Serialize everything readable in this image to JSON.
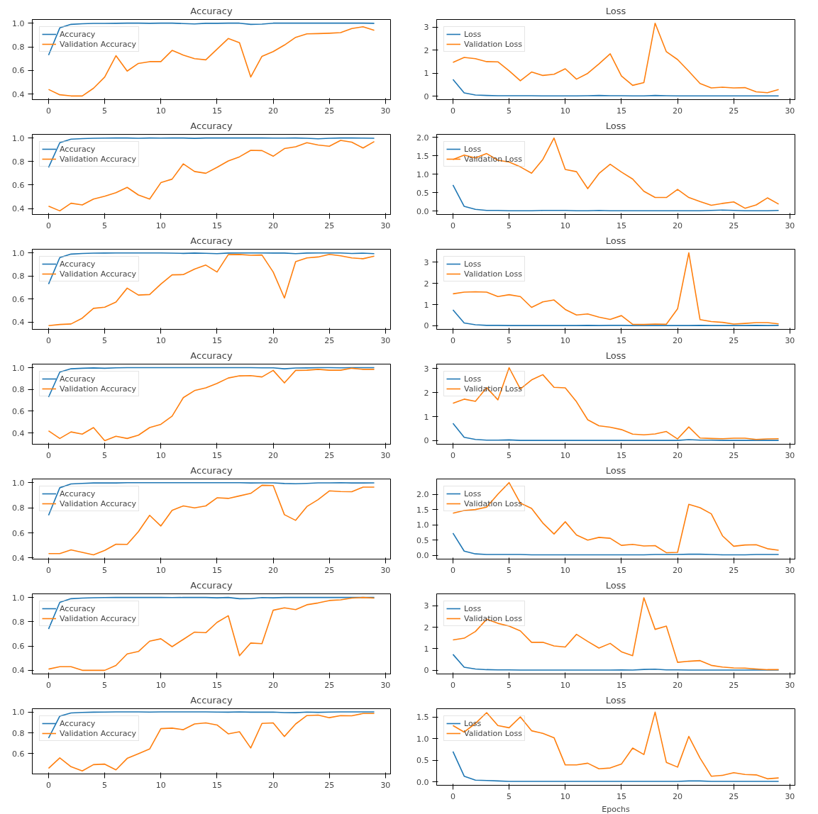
{
  "chart_data": [
    {
      "type": "line",
      "title": "Accuracy",
      "legend": "top left",
      "xlim": [
        -1.45,
        30.45
      ],
      "xticks": [
        0,
        5,
        10,
        15,
        20,
        25,
        30
      ],
      "ylim": [
        0.354,
        1.031
      ],
      "yticks": [
        0.4,
        0.6,
        0.8,
        {
          "value": 1,
          "label": "1.0"
        }
      ],
      "x": [
        0,
        1,
        2,
        3,
        4,
        5,
        6,
        7,
        8,
        9,
        10,
        11,
        12,
        13,
        14,
        15,
        16,
        17,
        18,
        19,
        20,
        21,
        22,
        23,
        24,
        25,
        26,
        27,
        28,
        29
      ],
      "series": [
        {
          "name": "Accuracy",
          "color": "#1f77b4",
          "values": [
            0.73,
            0.96,
            0.99,
            0.995,
            0.998,
            0.998,
            0.999,
            1.0,
            1.0,
            0.999,
            1.0,
            1.0,
            0.997,
            0.994,
            0.999,
            0.999,
            1.0,
            1.0,
            0.99,
            0.992,
            1.0,
            1.0,
            1.0,
            1.0,
            1.0,
            1.0,
            1.0,
            1.0,
            1.0,
            0.999
          ]
        },
        {
          "name": "Validation Accuracy",
          "color": "#ff7f0e",
          "values": [
            0.44,
            0.395,
            0.385,
            0.385,
            0.45,
            0.545,
            0.725,
            0.595,
            0.66,
            0.675,
            0.675,
            0.77,
            0.73,
            0.7,
            0.69,
            0.78,
            0.87,
            0.835,
            0.545,
            0.72,
            0.76,
            0.815,
            0.88,
            0.91,
            0.912,
            0.915,
            0.92,
            0.955,
            0.97,
            0.94
          ]
        }
      ]
    },
    {
      "type": "line",
      "title": "Loss",
      "legend": "top left",
      "xlim": [
        -1.45,
        30.45
      ],
      "xticks": [
        0,
        5,
        10,
        15,
        20,
        25,
        30
      ],
      "ylim": [
        -0.15,
        3.33
      ],
      "yticks": [
        0,
        1,
        2,
        3
      ],
      "x": [
        0,
        1,
        2,
        3,
        4,
        5,
        6,
        7,
        8,
        9,
        10,
        11,
        12,
        13,
        14,
        15,
        16,
        17,
        18,
        19,
        20,
        21,
        22,
        23,
        24,
        25,
        26,
        27,
        28,
        29
      ],
      "series": [
        {
          "name": "Loss",
          "color": "#1f77b4",
          "values": [
            0.73,
            0.14,
            0.05,
            0.03,
            0.02,
            0.02,
            0.02,
            0.02,
            0.01,
            0.01,
            0.01,
            0.01,
            0.02,
            0.03,
            0.02,
            0.02,
            0.01,
            0.01,
            0.03,
            0.02,
            0.01,
            0.01,
            0.01,
            0.01,
            0.01,
            0.01,
            0.01,
            0.01,
            0.01,
            0.01
          ]
        },
        {
          "name": "Validation Loss",
          "color": "#ff7f0e",
          "values": [
            1.47,
            1.68,
            1.63,
            1.5,
            1.49,
            1.1,
            0.67,
            1.05,
            0.9,
            0.95,
            1.19,
            0.74,
            0.99,
            1.4,
            1.84,
            0.88,
            0.47,
            0.59,
            3.17,
            1.93,
            1.59,
            1.08,
            0.55,
            0.36,
            0.39,
            0.36,
            0.37,
            0.19,
            0.15,
            0.29
          ]
        }
      ]
    },
    {
      "type": "line",
      "title": "Accuracy",
      "legend": "top left",
      "xlim": [
        -1.45,
        30.45
      ],
      "xticks": [
        0,
        5,
        10,
        15,
        20,
        25,
        30
      ],
      "ylim": [
        0.349,
        1.031
      ],
      "yticks": [
        0.4,
        0.6,
        0.8,
        {
          "value": 1,
          "label": "1.0"
        }
      ],
      "x": [
        0,
        1,
        2,
        3,
        4,
        5,
        6,
        7,
        8,
        9,
        10,
        11,
        12,
        13,
        14,
        15,
        16,
        17,
        18,
        19,
        20,
        21,
        22,
        23,
        24,
        25,
        26,
        27,
        28,
        29
      ],
      "series": [
        {
          "name": "Accuracy",
          "color": "#1f77b4",
          "values": [
            0.75,
            0.96,
            0.99,
            0.995,
            0.998,
            0.999,
            1.0,
            1.0,
            0.998,
            1.0,
            0.999,
            1.0,
            1.0,
            0.997,
            1.0,
            1.0,
            1.0,
            1.0,
            1.0,
            1.0,
            0.999,
            0.999,
            1.0,
            0.998,
            0.993,
            0.998,
            1.0,
            1.0,
            0.999,
            0.998
          ]
        },
        {
          "name": "Validation Accuracy",
          "color": "#ff7f0e",
          "values": [
            0.42,
            0.38,
            0.445,
            0.43,
            0.48,
            0.505,
            0.535,
            0.58,
            0.515,
            0.48,
            0.62,
            0.65,
            0.78,
            0.715,
            0.7,
            0.75,
            0.805,
            0.84,
            0.895,
            0.893,
            0.845,
            0.91,
            0.925,
            0.96,
            0.94,
            0.93,
            0.98,
            0.965,
            0.915,
            0.97
          ]
        }
      ]
    },
    {
      "type": "line",
      "title": "Loss",
      "legend": "top left",
      "xlim": [
        -1.45,
        30.45
      ],
      "xticks": [
        0,
        5,
        10,
        15,
        20,
        25,
        30
      ],
      "ylim": [
        -0.09,
        2.08
      ],
      "yticks": [
        {
          "value": 0,
          "label": "0.0"
        },
        0.5,
        {
          "value": 1,
          "label": "1.0"
        },
        1.5,
        {
          "value": 2,
          "label": "2.0"
        }
      ],
      "x": [
        0,
        1,
        2,
        3,
        4,
        5,
        6,
        7,
        8,
        9,
        10,
        11,
        12,
        13,
        14,
        15,
        16,
        17,
        18,
        19,
        20,
        21,
        22,
        23,
        24,
        25,
        26,
        27,
        28,
        29
      ],
      "series": [
        {
          "name": "Loss",
          "color": "#1f77b4",
          "values": [
            0.71,
            0.13,
            0.05,
            0.02,
            0.02,
            0.01,
            0.01,
            0.01,
            0.02,
            0.02,
            0.02,
            0.01,
            0.01,
            0.02,
            0.01,
            0.01,
            0.01,
            0.01,
            0.01,
            0.01,
            0.01,
            0.01,
            0.01,
            0.02,
            0.03,
            0.02,
            0.01,
            0.01,
            0.01,
            0.02
          ]
        },
        {
          "name": "Validation Loss",
          "color": "#ff7f0e",
          "values": [
            1.4,
            1.52,
            1.44,
            1.56,
            1.38,
            1.33,
            1.2,
            1.03,
            1.4,
            1.98,
            1.13,
            1.07,
            0.61,
            1.02,
            1.27,
            1.06,
            0.87,
            0.54,
            0.37,
            0.37,
            0.59,
            0.37,
            0.26,
            0.16,
            0.21,
            0.25,
            0.08,
            0.17,
            0.36,
            0.19
          ]
        }
      ]
    },
    {
      "type": "line",
      "title": "Accuracy",
      "legend": "top left",
      "xlim": [
        -1.45,
        30.45
      ],
      "xticks": [
        0,
        5,
        10,
        15,
        20,
        25,
        30
      ],
      "ylim": [
        0.338,
        1.032
      ],
      "yticks": [
        0.4,
        0.6,
        0.8,
        {
          "value": 1,
          "label": "1.0"
        }
      ],
      "x": [
        0,
        1,
        2,
        3,
        4,
        5,
        6,
        7,
        8,
        9,
        10,
        11,
        12,
        13,
        14,
        15,
        16,
        17,
        18,
        19,
        20,
        21,
        22,
        23,
        24,
        25,
        26,
        27,
        28,
        29
      ],
      "series": [
        {
          "name": "Accuracy",
          "color": "#1f77b4",
          "values": [
            0.73,
            0.96,
            0.99,
            0.995,
            0.998,
            0.999,
            1.0,
            1.0,
            1.0,
            1.0,
            1.0,
            0.998,
            0.996,
            0.999,
            0.997,
            0.994,
            0.999,
            1.0,
            1.0,
            1.0,
            0.999,
            0.999,
            0.994,
            0.999,
            1.0,
            1.0,
            1.0,
            0.995,
            0.998,
            0.994
          ]
        },
        {
          "name": "Validation Accuracy",
          "color": "#ff7f0e",
          "values": [
            0.37,
            0.38,
            0.385,
            0.435,
            0.52,
            0.53,
            0.575,
            0.695,
            0.635,
            0.64,
            0.73,
            0.81,
            0.812,
            0.86,
            0.895,
            0.835,
            0.985,
            0.987,
            0.98,
            0.982,
            0.835,
            0.61,
            0.925,
            0.957,
            0.965,
            0.987,
            0.975,
            0.957,
            0.95,
            0.972
          ]
        }
      ]
    },
    {
      "type": "line",
      "title": "Loss",
      "legend": "top left",
      "xlim": [
        -1.45,
        30.45
      ],
      "xticks": [
        0,
        5,
        10,
        15,
        20,
        25,
        30
      ],
      "ylim": [
        -0.17,
        3.62
      ],
      "yticks": [
        0,
        1,
        2,
        3
      ],
      "x": [
        0,
        1,
        2,
        3,
        4,
        5,
        6,
        7,
        8,
        9,
        10,
        11,
        12,
        13,
        14,
        15,
        16,
        17,
        18,
        19,
        20,
        21,
        22,
        23,
        24,
        25,
        26,
        27,
        28,
        29
      ],
      "series": [
        {
          "name": "Loss",
          "color": "#1f77b4",
          "values": [
            0.75,
            0.13,
            0.05,
            0.02,
            0.02,
            0.01,
            0.01,
            0.01,
            0.01,
            0.01,
            0.01,
            0.01,
            0.02,
            0.01,
            0.02,
            0.02,
            0.01,
            0.01,
            0.01,
            0.01,
            0.01,
            0.01,
            0.02,
            0.01,
            0.01,
            0.01,
            0.01,
            0.02,
            0.01,
            0.02
          ]
        },
        {
          "name": "Validation Loss",
          "color": "#ff7f0e",
          "values": [
            1.51,
            1.59,
            1.61,
            1.59,
            1.38,
            1.47,
            1.38,
            0.87,
            1.13,
            1.22,
            0.77,
            0.51,
            0.56,
            0.41,
            0.3,
            0.48,
            0.07,
            0.06,
            0.08,
            0.07,
            0.8,
            3.45,
            0.29,
            0.2,
            0.16,
            0.08,
            0.11,
            0.15,
            0.15,
            0.09
          ]
        }
      ]
    },
    {
      "type": "line",
      "title": "Accuracy",
      "legend": "top left",
      "xlim": [
        -1.45,
        30.45
      ],
      "xticks": [
        0,
        5,
        10,
        15,
        20,
        25,
        30
      ],
      "ylim": [
        0.297,
        1.033
      ],
      "yticks": [
        0.4,
        0.6,
        0.8,
        {
          "value": 1,
          "label": "1.0"
        }
      ],
      "x": [
        0,
        1,
        2,
        3,
        4,
        5,
        6,
        7,
        8,
        9,
        10,
        11,
        12,
        13,
        14,
        15,
        16,
        17,
        18,
        19,
        20,
        21,
        22,
        23,
        24,
        25,
        26,
        27,
        28,
        29
      ],
      "series": [
        {
          "name": "Accuracy",
          "color": "#1f77b4",
          "values": [
            0.73,
            0.96,
            0.99,
            0.995,
            0.998,
            0.995,
            0.999,
            1.0,
            1.0,
            1.0,
            1.0,
            1.0,
            1.0,
            1.0,
            1.0,
            1.0,
            1.0,
            1.0,
            1.0,
            0.999,
            0.999,
            0.99,
            0.997,
            0.998,
            1.0,
            1.0,
            0.999,
            1.0,
            1.0,
            1.0
          ]
        },
        {
          "name": "Validation Accuracy",
          "color": "#ff7f0e",
          "values": [
            0.42,
            0.35,
            0.41,
            0.39,
            0.45,
            0.33,
            0.37,
            0.35,
            0.38,
            0.45,
            0.48,
            0.555,
            0.725,
            0.79,
            0.815,
            0.855,
            0.905,
            0.925,
            0.927,
            0.915,
            0.975,
            0.86,
            0.975,
            0.977,
            0.985,
            0.977,
            0.977,
            0.995,
            0.985,
            0.985
          ]
        }
      ]
    },
    {
      "type": "line",
      "title": "Loss",
      "legend": "top left",
      "xlim": [
        -1.45,
        30.45
      ],
      "xticks": [
        0,
        5,
        10,
        15,
        20,
        25,
        30
      ],
      "ylim": [
        -0.15,
        3.19
      ],
      "yticks": [
        0,
        1,
        2,
        3
      ],
      "x": [
        0,
        1,
        2,
        3,
        4,
        5,
        6,
        7,
        8,
        9,
        10,
        11,
        12,
        13,
        14,
        15,
        16,
        17,
        18,
        19,
        20,
        21,
        22,
        23,
        24,
        25,
        26,
        27,
        28,
        29
      ],
      "series": [
        {
          "name": "Loss",
          "color": "#1f77b4",
          "values": [
            0.72,
            0.14,
            0.05,
            0.02,
            0.02,
            0.03,
            0.01,
            0.01,
            0.01,
            0.01,
            0.01,
            0.01,
            0.01,
            0.01,
            0.01,
            0.01,
            0.01,
            0.01,
            0.01,
            0.01,
            0.01,
            0.04,
            0.02,
            0.02,
            0.01,
            0.01,
            0.01,
            0.01,
            0.01,
            0.01
          ]
        },
        {
          "name": "Validation Loss",
          "color": "#ff7f0e",
          "values": [
            1.56,
            1.73,
            1.64,
            2.21,
            1.7,
            3.04,
            2.15,
            2.53,
            2.75,
            2.22,
            2.2,
            1.62,
            0.87,
            0.62,
            0.56,
            0.46,
            0.27,
            0.24,
            0.28,
            0.38,
            0.07,
            0.57,
            0.11,
            0.09,
            0.08,
            0.1,
            0.1,
            0.05,
            0.07,
            0.08
          ]
        }
      ]
    },
    {
      "type": "line",
      "title": "Accuracy",
      "legend": "top left",
      "xlim": [
        -1.45,
        30.45
      ],
      "xticks": [
        0,
        5,
        10,
        15,
        20,
        25,
        30
      ],
      "ylim": [
        0.391,
        1.03
      ],
      "yticks": [
        0.4,
        0.6,
        0.8,
        {
          "value": 1,
          "label": "1.0"
        }
      ],
      "x": [
        0,
        1,
        2,
        3,
        4,
        5,
        6,
        7,
        8,
        9,
        10,
        11,
        12,
        13,
        14,
        15,
        16,
        17,
        18,
        19,
        20,
        21,
        22,
        23,
        24,
        25,
        26,
        27,
        28,
        29
      ],
      "series": [
        {
          "name": "Accuracy",
          "color": "#1f77b4",
          "values": [
            0.74,
            0.96,
            0.99,
            0.995,
            0.998,
            0.999,
            0.998,
            1.0,
            1.0,
            1.0,
            1.0,
            1.0,
            1.0,
            1.0,
            1.0,
            1.0,
            1.0,
            1.0,
            0.998,
            0.999,
            0.999,
            0.994,
            0.992,
            0.995,
            0.999,
            0.999,
            1.0,
            0.998,
            0.998,
            0.999
          ]
        },
        {
          "name": "Validation Accuracy",
          "color": "#ff7f0e",
          "values": [
            0.435,
            0.435,
            0.465,
            0.445,
            0.425,
            0.46,
            0.51,
            0.508,
            0.61,
            0.74,
            0.655,
            0.78,
            0.815,
            0.8,
            0.815,
            0.88,
            0.875,
            0.895,
            0.915,
            0.98,
            0.978,
            0.745,
            0.7,
            0.81,
            0.865,
            0.935,
            0.93,
            0.928,
            0.965,
            0.965
          ]
        }
      ]
    },
    {
      "type": "line",
      "title": "Loss",
      "legend": "top left",
      "xlim": [
        -1.45,
        30.45
      ],
      "xticks": [
        0,
        5,
        10,
        15,
        20,
        25,
        30
      ],
      "ylim": [
        -0.12,
        2.5
      ],
      "yticks": [
        {
          "value": 0,
          "label": "0.0"
        },
        0.5,
        {
          "value": 1,
          "label": "1.0"
        },
        1.5,
        {
          "value": 2,
          "label": "2.0"
        }
      ],
      "x": [
        0,
        1,
        2,
        3,
        4,
        5,
        6,
        7,
        8,
        9,
        10,
        11,
        12,
        13,
        14,
        15,
        16,
        17,
        18,
        19,
        20,
        21,
        22,
        23,
        24,
        25,
        26,
        27,
        28,
        29
      ],
      "series": [
        {
          "name": "Loss",
          "color": "#1f77b4",
          "values": [
            0.73,
            0.14,
            0.05,
            0.03,
            0.03,
            0.03,
            0.03,
            0.02,
            0.02,
            0.02,
            0.02,
            0.02,
            0.02,
            0.02,
            0.02,
            0.02,
            0.02,
            0.02,
            0.03,
            0.03,
            0.03,
            0.04,
            0.04,
            0.03,
            0.02,
            0.02,
            0.02,
            0.03,
            0.03,
            0.03
          ]
        },
        {
          "name": "Validation Loss",
          "color": "#ff7f0e",
          "values": [
            1.38,
            1.47,
            1.5,
            1.58,
            2.0,
            2.38,
            1.71,
            1.54,
            1.06,
            0.7,
            1.1,
            0.67,
            0.5,
            0.59,
            0.56,
            0.33,
            0.36,
            0.31,
            0.32,
            0.09,
            0.1,
            1.67,
            1.56,
            1.36,
            0.64,
            0.3,
            0.34,
            0.35,
            0.22,
            0.17
          ]
        }
      ]
    },
    {
      "type": "line",
      "title": "Accuracy",
      "legend": "top left",
      "xlim": [
        -1.45,
        30.45
      ],
      "xticks": [
        0,
        5,
        10,
        15,
        20,
        25,
        30
      ],
      "ylim": [
        0.37,
        1.03
      ],
      "yticks": [
        0.4,
        0.6,
        0.8,
        {
          "value": 1,
          "label": "1.0"
        }
      ],
      "x": [
        0,
        1,
        2,
        3,
        4,
        5,
        6,
        7,
        8,
        9,
        10,
        11,
        12,
        13,
        14,
        15,
        16,
        17,
        18,
        19,
        20,
        21,
        22,
        23,
        24,
        25,
        26,
        27,
        28,
        29
      ],
      "series": [
        {
          "name": "Accuracy",
          "color": "#1f77b4",
          "values": [
            0.74,
            0.96,
            0.99,
            0.995,
            0.998,
            0.999,
            1.0,
            1.0,
            1.0,
            1.0,
            1.0,
            0.999,
            1.0,
            1.0,
            1.0,
            0.997,
            1.0,
            0.99,
            0.991,
            0.999,
            0.997,
            1.0,
            1.0,
            1.0,
            1.0,
            1.0,
            1.0,
            1.0,
            1.0,
            1.0
          ]
        },
        {
          "name": "Validation Accuracy",
          "color": "#ff7f0e",
          "values": [
            0.41,
            0.43,
            0.43,
            0.4,
            0.4,
            0.4,
            0.44,
            0.535,
            0.555,
            0.64,
            0.66,
            0.595,
            0.655,
            0.715,
            0.71,
            0.795,
            0.85,
            0.52,
            0.625,
            0.62,
            0.895,
            0.915,
            0.9,
            0.94,
            0.955,
            0.975,
            0.98,
            0.995,
            1.0,
            0.995
          ]
        }
      ]
    },
    {
      "type": "line",
      "title": "Loss",
      "legend": "top left",
      "xlim": [
        -1.45,
        30.45
      ],
      "xticks": [
        0,
        5,
        10,
        15,
        20,
        25,
        30
      ],
      "ylim": [
        -0.17,
        3.55
      ],
      "yticks": [
        0,
        1,
        2,
        3
      ],
      "x": [
        0,
        1,
        2,
        3,
        4,
        5,
        6,
        7,
        8,
        9,
        10,
        11,
        12,
        13,
        14,
        15,
        16,
        17,
        18,
        19,
        20,
        21,
        22,
        23,
        24,
        25,
        26,
        27,
        28,
        29
      ],
      "series": [
        {
          "name": "Loss",
          "color": "#1f77b4",
          "values": [
            0.74,
            0.14,
            0.06,
            0.03,
            0.02,
            0.02,
            0.01,
            0.01,
            0.01,
            0.01,
            0.01,
            0.01,
            0.01,
            0.01,
            0.01,
            0.02,
            0.01,
            0.04,
            0.05,
            0.02,
            0.02,
            0.01,
            0.01,
            0.01,
            0.01,
            0.01,
            0.01,
            0.01,
            0.01,
            0.01
          ]
        },
        {
          "name": "Validation Loss",
          "color": "#ff7f0e",
          "values": [
            1.41,
            1.49,
            1.8,
            2.37,
            2.18,
            2.05,
            1.83,
            1.3,
            1.3,
            1.13,
            1.08,
            1.67,
            1.34,
            1.03,
            1.25,
            0.86,
            0.68,
            3.37,
            1.9,
            2.05,
            0.37,
            0.42,
            0.45,
            0.23,
            0.15,
            0.11,
            0.1,
            0.06,
            0.03,
            0.03
          ]
        }
      ]
    },
    {
      "type": "line",
      "title": "Accuracy",
      "legend": "top left",
      "xlim": [
        -1.45,
        30.45
      ],
      "xticks": [
        0,
        5,
        10,
        15,
        20,
        25,
        30
      ],
      "ylim": [
        0.406,
        1.031
      ],
      "yticks": [
        0.6,
        0.8,
        {
          "value": 1,
          "label": "1.0"
        }
      ],
      "x": [
        0,
        1,
        2,
        3,
        4,
        5,
        6,
        7,
        8,
        9,
        10,
        11,
        12,
        13,
        14,
        15,
        16,
        17,
        18,
        19,
        20,
        21,
        22,
        23,
        24,
        25,
        26,
        27,
        28,
        29
      ],
      "series": [
        {
          "name": "Accuracy",
          "color": "#1f77b4",
          "values": [
            0.75,
            0.96,
            0.99,
            0.995,
            0.998,
            0.999,
            1.0,
            1.0,
            1.0,
            0.999,
            1.0,
            1.0,
            1.0,
            1.0,
            1.0,
            0.999,
            0.998,
            1.0,
            0.998,
            0.998,
            0.999,
            0.994,
            0.993,
            0.999,
            0.996,
            0.999,
            1.0,
            1.0,
            1.0,
            1.0
          ]
        },
        {
          "name": "Validation Accuracy",
          "color": "#ff7f0e",
          "values": [
            0.46,
            0.56,
            0.475,
            0.435,
            0.495,
            0.5,
            0.445,
            0.555,
            0.6,
            0.645,
            0.84,
            0.845,
            0.83,
            0.885,
            0.895,
            0.875,
            0.79,
            0.81,
            0.655,
            0.89,
            0.895,
            0.765,
            0.885,
            0.965,
            0.97,
            0.945,
            0.965,
            0.963,
            0.985,
            0.985
          ]
        }
      ]
    },
    {
      "type": "line",
      "title": "Loss",
      "xlabel": "Epochs",
      "legend": "top left",
      "xlim": [
        -1.45,
        30.45
      ],
      "xticks": [
        0,
        5,
        10,
        15,
        20,
        25,
        30
      ],
      "ylim": [
        -0.08,
        1.69
      ],
      "yticks": [
        {
          "value": 0,
          "label": "0.0"
        },
        0.5,
        {
          "value": 1,
          "label": "1.0"
        },
        1.5
      ],
      "x": [
        0,
        1,
        2,
        3,
        4,
        5,
        6,
        7,
        8,
        9,
        10,
        11,
        12,
        13,
        14,
        15,
        16,
        17,
        18,
        19,
        20,
        21,
        22,
        23,
        24,
        25,
        26,
        27,
        28,
        29
      ],
      "series": [
        {
          "name": "Loss",
          "color": "#1f77b4",
          "values": [
            0.7,
            0.13,
            0.04,
            0.03,
            0.02,
            0.01,
            0.01,
            0.01,
            0.01,
            0.01,
            0.01,
            0.01,
            0.01,
            0.01,
            0.01,
            0.01,
            0.01,
            0.01,
            0.01,
            0.01,
            0.01,
            0.02,
            0.02,
            0.01,
            0.01,
            0.01,
            0.01,
            0.01,
            0.01,
            0.01
          ]
        },
        {
          "name": "Validation Loss",
          "color": "#ff7f0e",
          "values": [
            1.3,
            1.15,
            1.35,
            1.6,
            1.3,
            1.25,
            1.5,
            1.18,
            1.12,
            1.02,
            0.39,
            0.39,
            0.43,
            0.3,
            0.32,
            0.41,
            0.78,
            0.63,
            1.61,
            0.45,
            0.34,
            1.05,
            0.55,
            0.13,
            0.15,
            0.21,
            0.17,
            0.16,
            0.07,
            0.09
          ]
        }
      ]
    }
  ]
}
